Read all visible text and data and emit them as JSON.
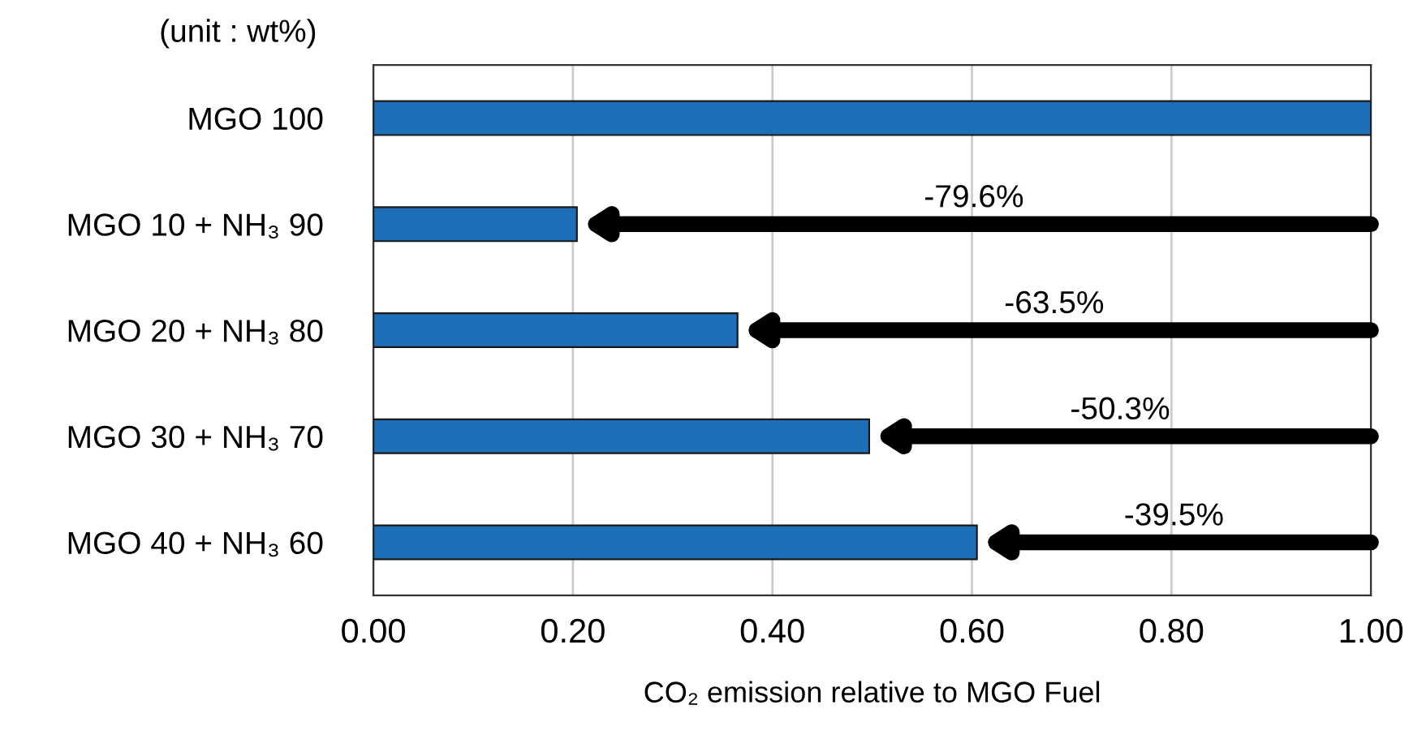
{
  "chart_data": {
    "type": "bar",
    "orientation": "horizontal",
    "xlabel": "CO₂ emission relative to MGO Fuel",
    "categories": [
      "MGO 100",
      "MGO 10 + NH₃ 90",
      "MGO 20 + NH₃ 80",
      "MGO 30 + NH₃ 70",
      "MGO 40 + NH₃ 60"
    ],
    "values": [
      1.0,
      0.204,
      0.365,
      0.497,
      0.605
    ],
    "color": "#1f6fb8",
    "xlim": [
      0,
      1.0
    ],
    "xticks": [
      {
        "value": 0,
        "label": "0.00"
      },
      {
        "value": 0.2,
        "label": "0.20"
      },
      {
        "value": 0.4,
        "label": "0.40"
      },
      {
        "value": 0.6,
        "label": "0.60"
      },
      {
        "value": 0.8,
        "label": "0.80"
      },
      {
        "value": 1.0,
        "label": "1.00"
      }
    ],
    "grid": "x",
    "annotations": [
      "(unit : wt%)",
      "-79.6%",
      "-63.5%",
      "-50.3%",
      "-39.5%"
    ]
  }
}
